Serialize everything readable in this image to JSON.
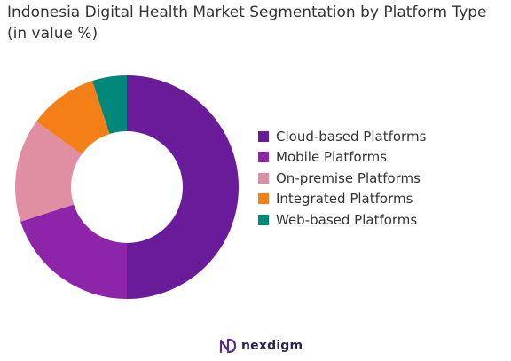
{
  "chart_data": {
    "type": "pie",
    "title": "Indonesia Digital Health Market Segmentation by Platform Type (in value %)",
    "categories": [
      "Cloud-based Platforms",
      "Mobile Platforms",
      "On-premise Platforms",
      "Integrated Platforms",
      "Web-based Platforms"
    ],
    "values": [
      50,
      20,
      15,
      10,
      5
    ],
    "colors": [
      "#6a1b9a",
      "#8e24aa",
      "#e08fa2",
      "#f57f17",
      "#00897b"
    ],
    "donut": true,
    "legend_position": "right"
  },
  "brand": {
    "name": "nexdigm",
    "logo_icon": "nexdigm-logo-icon"
  }
}
